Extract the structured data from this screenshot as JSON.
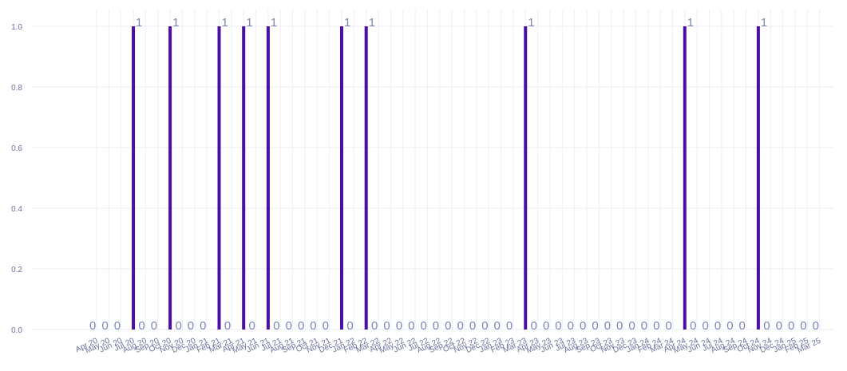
{
  "chart_data": {
    "type": "bar",
    "categories": [
      "Apr 20",
      "May 20",
      "Jun 20",
      "Jul 20",
      "Aug 20",
      "Sep 20",
      "Oct 20",
      "Nov 20",
      "Dec 20",
      "Jan 21",
      "Feb 21",
      "Mar 21",
      "Apr 21",
      "May 21",
      "Jun 21",
      "Jul 21",
      "Aug 21",
      "Sep 21",
      "Oct 21",
      "Nov 21",
      "Dec 21",
      "Jan 22",
      "Feb 22",
      "Mar 22",
      "Apr 22",
      "May 22",
      "Jun 22",
      "Jul 22",
      "Aug 22",
      "Sep 22",
      "Oct 22",
      "Nov 22",
      "Dec 22",
      "Jan 23",
      "Feb 23",
      "Mar 23",
      "Apr 23",
      "May 23",
      "Jun 23",
      "Jul 23",
      "Aug 23",
      "Sep 23",
      "Oct 23",
      "Nov 23",
      "Dec 23",
      "Jan 24",
      "Feb 24",
      "Mar 24",
      "Apr 24",
      "May 24",
      "Jun 24",
      "Jul 24",
      "Aug 24",
      "Sep 24",
      "Oct 24",
      "Nov 24",
      "Dec 24",
      "Jan 25",
      "Feb 25",
      "Mar 25"
    ],
    "values": [
      0,
      0,
      0,
      1,
      0,
      0,
      1,
      0,
      0,
      0,
      1,
      0,
      1,
      0,
      1,
      0,
      0,
      0,
      0,
      0,
      1,
      0,
      1,
      0,
      0,
      0,
      0,
      0,
      0,
      0,
      0,
      0,
      0,
      0,
      0,
      1,
      0,
      0,
      0,
      0,
      0,
      0,
      0,
      0,
      0,
      0,
      0,
      0,
      1,
      0,
      0,
      0,
      0,
      0,
      1,
      0,
      0,
      0,
      0,
      0
    ],
    "value_labels": [
      "0",
      "0",
      "0",
      "1",
      "0",
      "0",
      "1",
      "0",
      "0",
      "0",
      "1",
      "0",
      "1",
      "0",
      "1",
      "0",
      "0",
      "0",
      "0",
      "0",
      "1",
      "0",
      "1",
      "0",
      "0",
      "0",
      "0",
      "0",
      "0",
      "0",
      "0",
      "0",
      "0",
      "0",
      "0",
      "1",
      "0",
      "0",
      "0",
      "0",
      "0",
      "0",
      "0",
      "0",
      "0",
      "0",
      "0",
      "0",
      "1",
      "0",
      "0",
      "0",
      "0",
      "0",
      "1",
      "0",
      "0",
      "0",
      "0",
      "0"
    ],
    "y_ticks": [
      "0.0",
      "0.2",
      "0.4",
      "0.6",
      "0.8",
      "1.0"
    ],
    "ylim": [
      0,
      1.05
    ],
    "grid": true,
    "bar_color": "#4a0fa6",
    "title": "",
    "xlabel": "",
    "ylabel": ""
  }
}
